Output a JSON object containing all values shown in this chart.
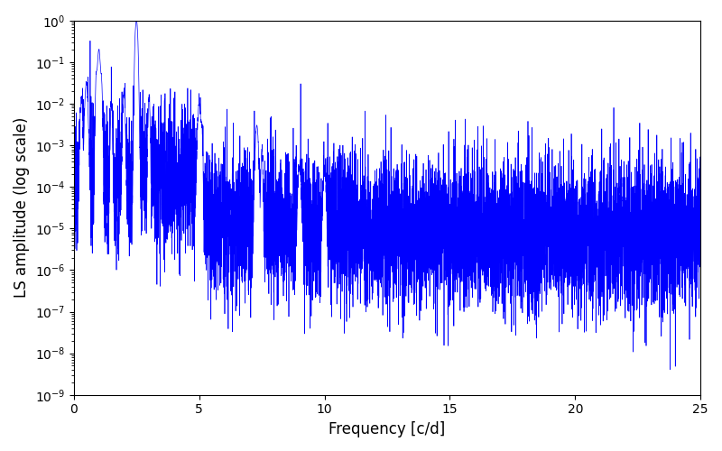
{
  "title": "",
  "xlabel": "Frequency [c/d]",
  "ylabel": "LS amplitude (log scale)",
  "xlim": [
    0,
    25
  ],
  "ylim": [
    1e-09,
    1.0
  ],
  "line_color": "#0000ff",
  "line_width": 0.5,
  "yscale": "log",
  "figsize": [
    8.0,
    5.0
  ],
  "dpi": 100,
  "seed": 42,
  "background_color": "#ffffff"
}
